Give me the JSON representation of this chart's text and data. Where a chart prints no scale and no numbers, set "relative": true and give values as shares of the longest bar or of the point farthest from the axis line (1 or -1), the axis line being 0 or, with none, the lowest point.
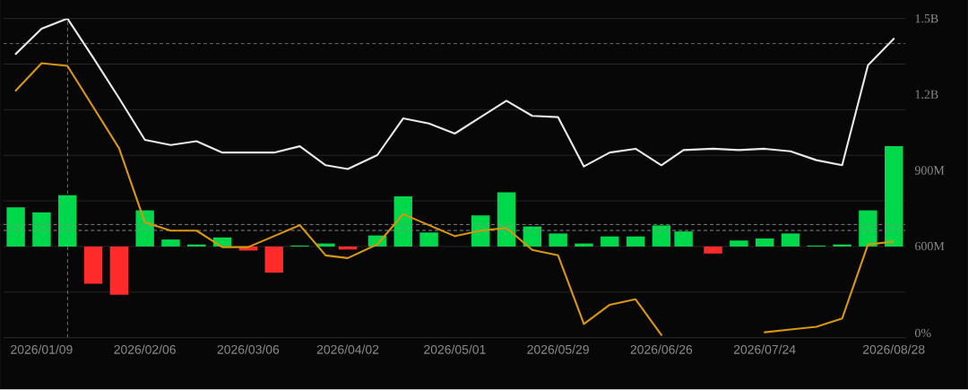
{
  "chart_data": [
    {
      "type": "bar",
      "relative": true,
      "grid": "y",
      "x": [
        "2026-01-02",
        "2026-01-09",
        "2026-01-16",
        "2026-01-23",
        "2026-01-30",
        "2026-02-06",
        "2026-02-13",
        "2026-02-20",
        "2026-02-27",
        "2026-03-06",
        "2026-03-13",
        "2026-03-20",
        "2026-03-27",
        "2026-04-02",
        "2026-04-10",
        "2026-04-17",
        "2026-04-24",
        "2026-05-01",
        "2026-05-08",
        "2026-05-15",
        "2026-05-22",
        "2026-05-29",
        "2026-06-05",
        "2026-06-12",
        "2026-06-19",
        "2026-06-26",
        "2026-07-02",
        "2026-07-10",
        "2026-07-17",
        "2026-07-24",
        "2026-07-31",
        "2026-08-07",
        "2026-08-14",
        "2026-08-21",
        "2026-08-28"
      ],
      "xlim": [
        "2025-12-29T15:00",
        "2026-08-31T04:00"
      ],
      "xticks": [
        {
          "value": "2026-01-09",
          "label": "2026/01/09"
        },
        {
          "value": "2026-02-06",
          "label": "2026/02/06"
        },
        {
          "value": "2026-03-06",
          "label": "2026/03/06"
        },
        {
          "value": "2026-04-02",
          "label": "2026/04/02"
        },
        {
          "value": "2026-05-01",
          "label": "2026/05/01"
        },
        {
          "value": "2026-05-29",
          "label": "2026/05/29"
        },
        {
          "value": "2026-06-26",
          "label": "2026/06/26"
        },
        {
          "value": "2026-07-24",
          "label": "2026/07/24"
        },
        {
          "value": "2026-08-28",
          "label": "2026/08/28"
        }
      ],
      "series": [
        {
          "colors": [
            "#00d84c",
            "#00d84c",
            "#00d84c",
            "#ff2a2a",
            "#ff2a2a",
            "#00d84c",
            "#00d84c",
            "#00d84c",
            "#00d84c",
            "#ff2a2a",
            "#ff2a2a",
            "#00d84c",
            "#00d84c",
            "#ff2a2a",
            "#00d84c",
            "#00d84c",
            "#00d84c",
            "#00d84c",
            "#00d84c",
            "#00d84c",
            "#00d84c",
            "#00d84c",
            "#00d84c",
            "#00d84c",
            "#00d84c",
            "#00d84c",
            "#00d84c",
            "#ff2a2a",
            "#00d84c",
            "#00d84c",
            "#00d84c",
            "#00d84c",
            "#00d84c",
            "#00d84c",
            "#00d84c"
          ],
          "values": [
            0.39,
            0.34,
            0.51,
            -0.37,
            -0.48,
            0.36,
            0.07,
            0.02,
            0.09,
            -0.04,
            -0.26,
            0.01,
            0.03,
            -0.03,
            0.11,
            0.5,
            0.14,
            null,
            0.31,
            0.54,
            0.2,
            0.13,
            0.03,
            0.1,
            0.1,
            0.21,
            0.15,
            -0.07,
            0.06,
            0.08,
            0.13,
            0.01,
            0.02,
            0.36,
            1.0
          ]
        }
      ],
      "ref_lines": [
        {
          "axis": "x",
          "value": "2026-01-16",
          "color": "#8c8c8c",
          "line_style": "dashed"
        },
        {
          "axis": "y",
          "value": 0.22,
          "color": "#8c8c8c",
          "line_style": "dashed"
        },
        {
          "axis": "y",
          "value": 0.16,
          "color": "#8c8c8c",
          "line_style": "dashed"
        }
      ]
    },
    {
      "type": "line",
      "relative": true,
      "tick_labels": false,
      "x": [
        "2026-01-02",
        "2026-01-09",
        "2026-01-16",
        "2026-01-23",
        "2026-01-30",
        "2026-02-06",
        "2026-02-13",
        "2026-02-20",
        "2026-02-27",
        "2026-03-06",
        "2026-03-13",
        "2026-03-20",
        "2026-03-27",
        "2026-04-02",
        "2026-04-10",
        "2026-04-17",
        "2026-04-24",
        "2026-05-01",
        "2026-05-08",
        "2026-05-15",
        "2026-05-22",
        "2026-05-29",
        "2026-06-05",
        "2026-06-12",
        "2026-06-19",
        "2026-06-26",
        "2026-07-02",
        "2026-07-10",
        "2026-07-17",
        "2026-07-24",
        "2026-07-31",
        "2026-08-07",
        "2026-08-14",
        "2026-08-21",
        "2026-08-28"
      ],
      "xlim": [
        "2025-12-29T15:00",
        "2026-08-31T04:00"
      ],
      "series": [
        {
          "color": "#d9960c",
          "values": [
            0.9,
            1.0,
            0.99,
            0.84,
            0.69,
            0.42,
            0.39,
            0.39,
            0.33,
            0.33,
            0.37,
            0.41,
            0.3,
            0.29,
            0.34,
            0.45,
            0.41,
            0.37,
            0.39,
            0.4,
            0.32,
            0.3,
            0.05,
            0.12,
            0.14,
            0.01,
            null,
            null,
            null,
            0.02,
            0.03,
            0.04,
            0.07,
            0.34,
            0.35
          ]
        }
      ],
      "ref_lines": [
        {
          "axis": "y",
          "value": 0,
          "label": "0%",
          "color": "#262626"
        }
      ]
    },
    {
      "type": "line",
      "tick_labels": "y",
      "x": [
        "2026-01-02",
        "2026-01-09",
        "2026-01-16",
        "2026-01-23",
        "2026-01-30",
        "2026-02-06",
        "2026-02-13",
        "2026-02-20",
        "2026-02-27",
        "2026-03-06",
        "2026-03-13",
        "2026-03-20",
        "2026-03-27",
        "2026-04-02",
        "2026-04-10",
        "2026-04-17",
        "2026-04-24",
        "2026-05-01",
        "2026-05-08",
        "2026-05-15",
        "2026-05-22",
        "2026-05-29",
        "2026-06-05",
        "2026-06-12",
        "2026-06-19",
        "2026-06-26",
        "2026-07-02",
        "2026-07-10",
        "2026-07-17",
        "2026-07-24",
        "2026-07-31",
        "2026-08-07",
        "2026-08-14",
        "2026-08-21",
        "2026-08-28"
      ],
      "xlim": [
        "2025-12-29T15:00",
        "2026-08-31T04:00"
      ],
      "ylim": [
        600000000,
        1500000000
      ],
      "yticks": [
        {
          "value": 600000000,
          "label": "600M"
        },
        {
          "value": 900000000,
          "label": "900M"
        },
        {
          "value": 1200000000,
          "label": "1.2B"
        },
        {
          "value": 1500000000,
          "label": "1.5B"
        }
      ],
      "series": [
        {
          "color": "#e8e8e8",
          "values": [
            1360000000,
            1460000000,
            1500000000,
            1345000000,
            1185000000,
            1020000000,
            1000000000,
            1015000000,
            970000000,
            970000000,
            970000000,
            995000000,
            920000000,
            905000000,
            960000000,
            1105000000,
            1085000000,
            1045000000,
            1110000000,
            1175000000,
            1115000000,
            1110000000,
            915000000,
            970000000,
            985000000,
            920000000,
            980000000,
            985000000,
            980000000,
            985000000,
            975000000,
            940000000,
            920000000,
            1315000000,
            1420000000
          ]
        }
      ],
      "ref_lines": [
        {
          "axis": "y",
          "value": 1400000000,
          "color": "#8c8c8c",
          "line_style": "dashed"
        }
      ]
    }
  ]
}
